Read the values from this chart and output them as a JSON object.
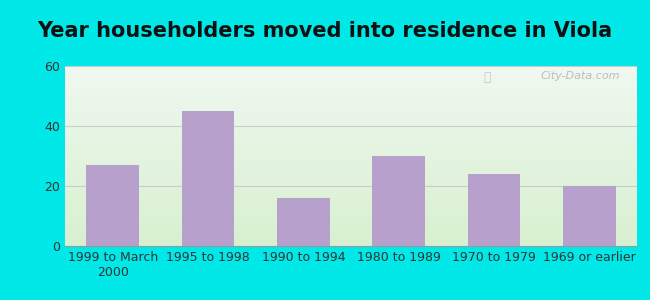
{
  "title": "Year householders moved into residence in Viola",
  "categories": [
    "1999 to March\n2000",
    "1995 to 1998",
    "1990 to 1994",
    "1980 to 1989",
    "1970 to 1979",
    "1969 or earlier"
  ],
  "values": [
    27,
    45,
    16,
    30,
    24,
    20
  ],
  "bar_color": "#b8a0cc",
  "ylim": [
    0,
    60
  ],
  "yticks": [
    0,
    20,
    40,
    60
  ],
  "background_outer": "#00e8e8",
  "background_top": "#f0f8f0",
  "background_bottom": "#d8f0d0",
  "grid_color": "#cccccc",
  "title_fontsize": 15,
  "tick_fontsize": 9,
  "watermark": "City-Data.com"
}
